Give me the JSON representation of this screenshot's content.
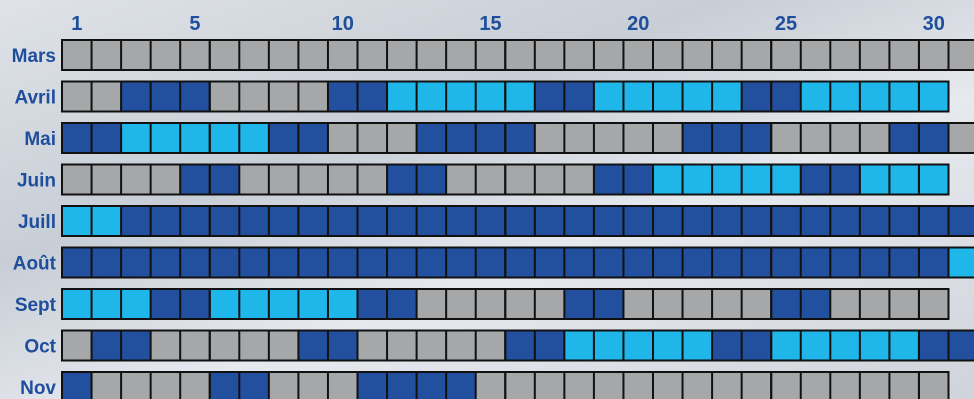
{
  "colors": {
    "gray": "#a5a7a9",
    "dark": "#224f9e",
    "light": "#1fb7ea",
    "label": "#1f4e9c",
    "grid_border": "#111111"
  },
  "legend_note": "",
  "chart_data": {
    "type": "heatmap",
    "title": "",
    "day_ticks": [
      1,
      5,
      10,
      15,
      20,
      25,
      30
    ],
    "days_visible": 31,
    "value_legend": {
      "0": "gray",
      "1": "dark blue",
      "2": "light blue"
    },
    "months": [
      {
        "name": "Mars",
        "days": [
          0,
          0,
          0,
          0,
          0,
          0,
          0,
          0,
          0,
          0,
          0,
          0,
          0,
          0,
          0,
          0,
          0,
          0,
          0,
          0,
          0,
          0,
          0,
          0,
          0,
          0,
          0,
          0,
          0,
          0,
          0
        ]
      },
      {
        "name": "Avril",
        "days": [
          0,
          0,
          1,
          1,
          1,
          0,
          0,
          0,
          0,
          1,
          1,
          2,
          2,
          2,
          2,
          2,
          1,
          1,
          2,
          2,
          2,
          2,
          2,
          1,
          1,
          2,
          2,
          2,
          2,
          2
        ]
      },
      {
        "name": "Mai",
        "days": [
          1,
          1,
          2,
          2,
          2,
          2,
          2,
          1,
          1,
          0,
          0,
          0,
          1,
          1,
          1,
          1,
          0,
          0,
          0,
          0,
          0,
          1,
          1,
          1,
          0,
          0,
          0,
          0,
          1,
          1,
          0
        ]
      },
      {
        "name": "Juin",
        "days": [
          0,
          0,
          0,
          0,
          1,
          1,
          0,
          0,
          0,
          0,
          0,
          1,
          1,
          0,
          0,
          0,
          0,
          0,
          1,
          1,
          2,
          2,
          2,
          2,
          2,
          1,
          1,
          2,
          2,
          2
        ]
      },
      {
        "name": "Juill",
        "days": [
          2,
          2,
          1,
          1,
          1,
          1,
          1,
          1,
          1,
          1,
          1,
          1,
          1,
          1,
          1,
          1,
          1,
          1,
          1,
          1,
          1,
          1,
          1,
          1,
          1,
          1,
          1,
          1,
          1,
          1,
          1
        ]
      },
      {
        "name": "Août",
        "days": [
          1,
          1,
          1,
          1,
          1,
          1,
          1,
          1,
          1,
          1,
          1,
          1,
          1,
          1,
          1,
          1,
          1,
          1,
          1,
          1,
          1,
          1,
          1,
          1,
          1,
          1,
          1,
          1,
          1,
          1,
          2
        ]
      },
      {
        "name": "Sept",
        "days": [
          2,
          2,
          2,
          1,
          1,
          2,
          2,
          2,
          2,
          2,
          1,
          1,
          0,
          0,
          0,
          0,
          0,
          1,
          1,
          0,
          0,
          0,
          0,
          0,
          1,
          1,
          0,
          0,
          0,
          0
        ]
      },
      {
        "name": "Oct",
        "days": [
          0,
          1,
          1,
          0,
          0,
          0,
          0,
          0,
          1,
          1,
          0,
          0,
          0,
          0,
          0,
          1,
          1,
          2,
          2,
          2,
          2,
          2,
          1,
          1,
          2,
          2,
          2,
          2,
          2,
          1,
          1
        ]
      },
      {
        "name": "Nov",
        "days": [
          1,
          0,
          0,
          0,
          0,
          1,
          1,
          0,
          0,
          0,
          1,
          1,
          1,
          1,
          0,
          0,
          0,
          0,
          0,
          0,
          0,
          0,
          0,
          0,
          0,
          0,
          0,
          0,
          0,
          0
        ]
      }
    ]
  }
}
